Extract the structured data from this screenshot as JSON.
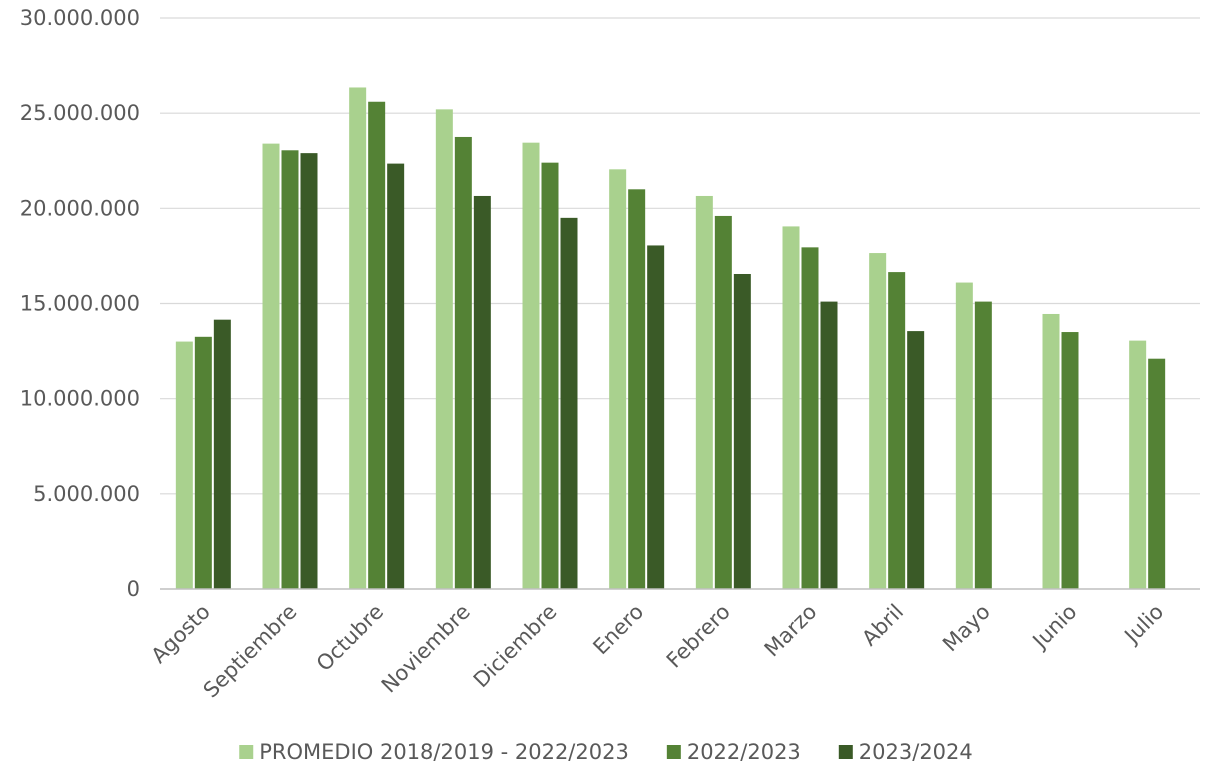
{
  "chart_data": {
    "type": "bar",
    "title": "",
    "xlabel": "",
    "ylabel": "",
    "ylim": [
      0,
      30000000
    ],
    "y_ticks": [
      0,
      5000000,
      10000000,
      15000000,
      20000000,
      25000000,
      30000000
    ],
    "y_tick_labels": [
      "0",
      "5.000.000",
      "10.000.000",
      "15.000.000",
      "20.000.000",
      "25.000.000",
      "30.000.000"
    ],
    "grid": true,
    "legend_position": "bottom",
    "categories": [
      "Agosto",
      "Septiembre",
      "Octubre",
      "Noviembre",
      "Diciembre",
      "Enero",
      "Febrero",
      "Marzo",
      "Abril",
      "Mayo",
      "Junio",
      "Julio"
    ],
    "series": [
      {
        "name": "PROMEDIO 2018/2019 - 2022/2023",
        "color": "#a9d18e",
        "values": [
          13000000,
          23400000,
          26350000,
          25200000,
          23450000,
          22050000,
          20650000,
          19050000,
          17650000,
          16100000,
          14450000,
          13050000
        ]
      },
      {
        "name": "2022/2023",
        "color": "#548235",
        "values": [
          13250000,
          23050000,
          25600000,
          23750000,
          22400000,
          21000000,
          19600000,
          17950000,
          16650000,
          15100000,
          13500000,
          12100000
        ]
      },
      {
        "name": "2023/2024",
        "color": "#3a5a27",
        "values": [
          14150000,
          22900000,
          22350000,
          20650000,
          19500000,
          18050000,
          16550000,
          15100000,
          13550000,
          null,
          null,
          null
        ]
      }
    ]
  }
}
